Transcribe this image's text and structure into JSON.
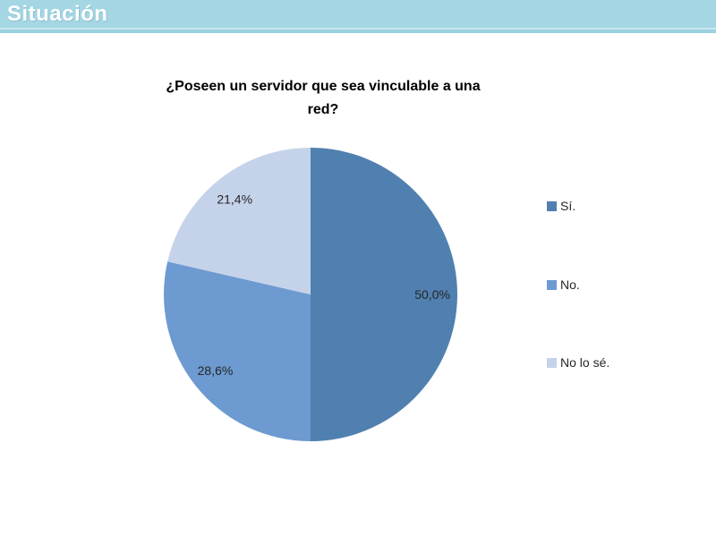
{
  "header": {
    "title": "Situación",
    "bg_color": "#A5D6E4",
    "text_color": "#FFFFFF"
  },
  "chart_data": {
    "type": "pie",
    "title": "¿Poseen un servidor que sea vinculable a una red?",
    "categories": [
      "Sí.",
      "No.",
      "No lo sé."
    ],
    "values": [
      50.0,
      28.6,
      21.4
    ],
    "slices": [
      {
        "label": "Sí.",
        "value": 50.0,
        "display": "50,0%",
        "color": "#5080B0"
      },
      {
        "label": "No.",
        "value": 28.6,
        "display": "28,6%",
        "color": "#6D9AD0"
      },
      {
        "label": "No lo sé.",
        "value": 21.4,
        "display": "21,4%",
        "color": "#C5D3EA"
      }
    ],
    "start_angle_deg": 0,
    "direction": "clockwise",
    "legend_position": "right",
    "label_color": "#262626",
    "grid": false
  }
}
